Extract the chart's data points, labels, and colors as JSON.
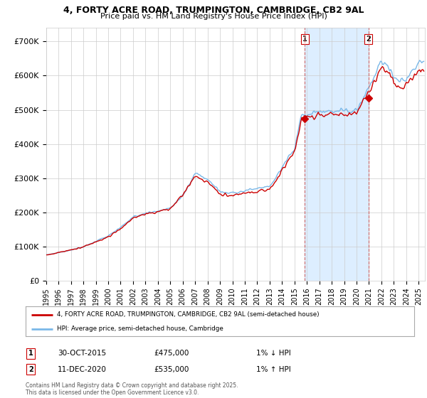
{
  "title_line1": "4, FORTY ACRE ROAD, TRUMPINGTON, CAMBRIDGE, CB2 9AL",
  "title_line2": "Price paid vs. HM Land Registry's House Price Index (HPI)",
  "ylabel_ticks": [
    "£0",
    "£100K",
    "£200K",
    "£300K",
    "£400K",
    "£500K",
    "£600K",
    "£700K"
  ],
  "ytick_values": [
    0,
    100000,
    200000,
    300000,
    400000,
    500000,
    600000,
    700000
  ],
  "ylim": [
    0,
    740000
  ],
  "xlim_start": 1995.0,
  "xlim_end": 2025.5,
  "xtick_years": [
    1995,
    1996,
    1997,
    1998,
    1999,
    2000,
    2001,
    2002,
    2003,
    2004,
    2005,
    2006,
    2007,
    2008,
    2009,
    2010,
    2011,
    2012,
    2013,
    2014,
    2015,
    2016,
    2017,
    2018,
    2019,
    2020,
    2021,
    2022,
    2023,
    2024,
    2025
  ],
  "hpi_color": "#7ab8e8",
  "price_color": "#cc0000",
  "marker1_x": 2015.83,
  "marker1_y": 475000,
  "marker2_x": 2020.95,
  "marker2_y": 535000,
  "shade_color": "#ddeeff",
  "vline_color": "#cc6666",
  "legend_line1": "4, FORTY ACRE ROAD, TRUMPINGTON, CAMBRIDGE, CB2 9AL (semi-detached house)",
  "legend_line2": "HPI: Average price, semi-detached house, Cambridge",
  "ann1_date": "30-OCT-2015",
  "ann1_price": "£475,000",
  "ann1_hpi": "1% ↓ HPI",
  "ann2_date": "11-DEC-2020",
  "ann2_price": "£535,000",
  "ann2_hpi": "1% ↑ HPI",
  "footer": "Contains HM Land Registry data © Crown copyright and database right 2025.\nThis data is licensed under the Open Government Licence v3.0."
}
